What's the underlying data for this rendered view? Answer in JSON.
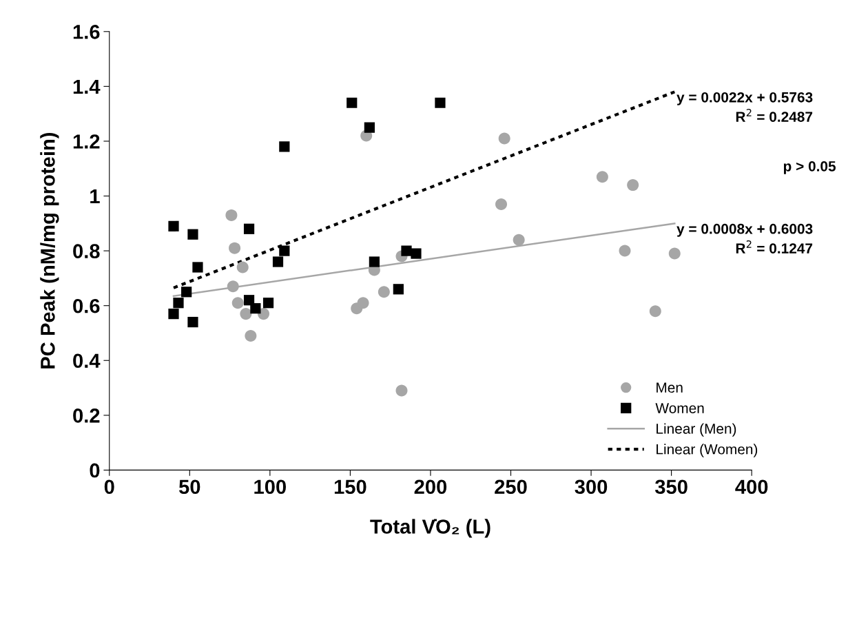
{
  "chart_data": {
    "type": "scatter",
    "xlabel": "Total V̇O₂ (L)",
    "ylabel": "PC Peak (nM/mg protein)",
    "xlim": [
      0,
      400
    ],
    "xticks": [
      0,
      50,
      100,
      150,
      200,
      250,
      300,
      350,
      400
    ],
    "ylim": [
      0,
      1.6
    ],
    "yticks": [
      0,
      0.2,
      0.4,
      0.6,
      0.8,
      1,
      1.2,
      1.4,
      1.6
    ],
    "grid": false,
    "legend": "bottom right",
    "series": [
      {
        "name": "Men",
        "color": "#a6a6a6",
        "marker": "circle",
        "x": [
          76,
          78,
          77,
          80,
          83,
          85,
          88,
          96,
          160,
          154,
          158,
          165,
          171,
          182,
          182,
          244,
          246,
          255,
          307,
          321,
          326,
          340,
          352
        ],
        "values": [
          0.93,
          0.81,
          0.67,
          0.61,
          0.74,
          0.57,
          0.49,
          0.57,
          1.22,
          0.59,
          0.61,
          0.73,
          0.65,
          0.29,
          0.78,
          0.97,
          1.21,
          0.84,
          1.07,
          0.8,
          1.04,
          0.58,
          0.79
        ]
      },
      {
        "name": "Women",
        "color": "#000000",
        "marker": "square",
        "x": [
          40,
          52,
          55,
          48,
          43,
          40,
          52,
          87,
          87,
          91,
          99,
          105,
          109,
          109,
          151,
          162,
          206,
          165,
          180,
          185,
          191
        ],
        "values": [
          0.89,
          0.86,
          0.74,
          0.65,
          0.61,
          0.57,
          0.54,
          0.88,
          0.62,
          0.59,
          0.61,
          0.76,
          0.8,
          1.18,
          1.34,
          1.25,
          1.34,
          0.76,
          0.66,
          0.8,
          0.79
        ]
      },
      {
        "name": "Linear (Men)",
        "type": "line",
        "color": "#a6a6a6",
        "line_style": "solid",
        "marker": "none",
        "x": [
          40,
          352
        ],
        "values": [
          0.635,
          0.9
        ]
      },
      {
        "name": "Linear (Women)",
        "type": "line",
        "color": "#000000",
        "line_style": "dotted",
        "marker": "none",
        "x": [
          40,
          352
        ],
        "values": [
          0.665,
          1.38
        ]
      }
    ],
    "annotations": [
      {
        "text": "y = 0.0022x + 0.5763\nR$^{2}$ = 0.2487",
        "x": 352,
        "y": 1.38
      },
      {
        "text": "y = 0.0008x + 0.6003\nR$^{2}$ = 0.1247",
        "x": 352,
        "y": 0.9
      },
      "p > 0.05"
    ]
  }
}
